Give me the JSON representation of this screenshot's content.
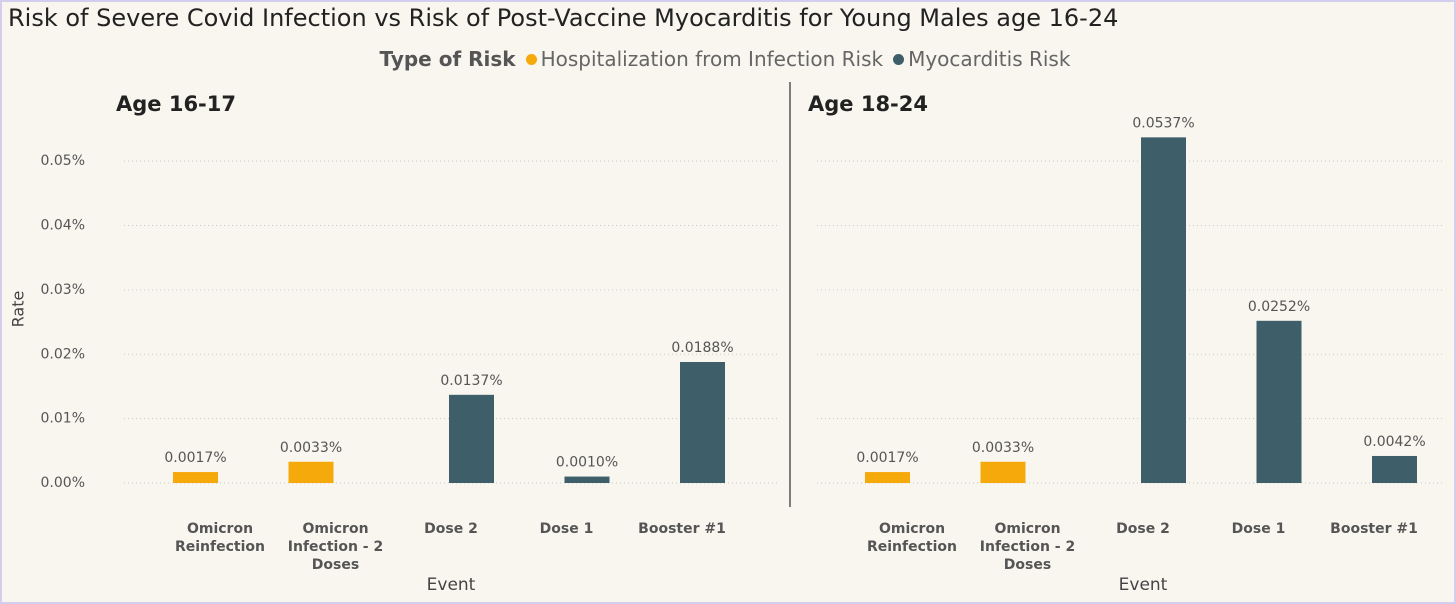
{
  "chart_data": {
    "type": "bar",
    "title": "Risk of Severe Covid Infection vs Risk of Post-Vaccine Myocarditis for Young Males age 16-24",
    "legend_title": "Type of Risk",
    "legend": [
      {
        "name": "Hospitalization from Infection Risk",
        "color": "#f5a90a"
      },
      {
        "name": "Myocarditis Risk",
        "color": "#3e5f6a"
      }
    ],
    "ylabel": "Rate",
    "xlabel": "Event",
    "ylim": [
      0,
      0.055
    ],
    "yticks": [
      {
        "value": 0,
        "label": "0.00%"
      },
      {
        "value": 0.01,
        "label": "0.01%"
      },
      {
        "value": 0.02,
        "label": "0.02%"
      },
      {
        "value": 0.03,
        "label": "0.03%"
      },
      {
        "value": 0.04,
        "label": "0.04%"
      },
      {
        "value": 0.05,
        "label": "0.05%"
      }
    ],
    "grid": true,
    "panels": [
      {
        "title": "Age 16-17",
        "categories": [
          "Omicron Reinfection",
          "Omicron Infection - 2 Doses",
          "Dose 2",
          "Dose 1",
          "Booster #1"
        ],
        "series": [
          {
            "values": [
              0.0017,
              0.0033,
              null,
              null,
              null
            ],
            "value_labels": [
              "0.0017%",
              "0.0033%",
              null,
              null,
              null
            ]
          },
          {
            "values": [
              null,
              null,
              0.0137,
              0.001,
              0.0188
            ],
            "value_labels": [
              null,
              null,
              "0.0137%",
              "0.0010%",
              "0.0188%"
            ]
          }
        ]
      },
      {
        "title": "Age 18-24",
        "categories": [
          "Omicron Reinfection",
          "Omicron Infection - 2 Doses",
          "Dose 2",
          "Dose 1",
          "Booster #1"
        ],
        "series": [
          {
            "values": [
              0.0017,
              0.0033,
              null,
              null,
              null
            ],
            "value_labels": [
              "0.0017%",
              "0.0033%",
              null,
              null,
              null
            ]
          },
          {
            "values": [
              null,
              null,
              0.0537,
              0.0252,
              0.0042
            ],
            "value_labels": [
              null,
              null,
              "0.0537%",
              "0.0252%",
              "0.0042%"
            ]
          }
        ]
      }
    ]
  }
}
